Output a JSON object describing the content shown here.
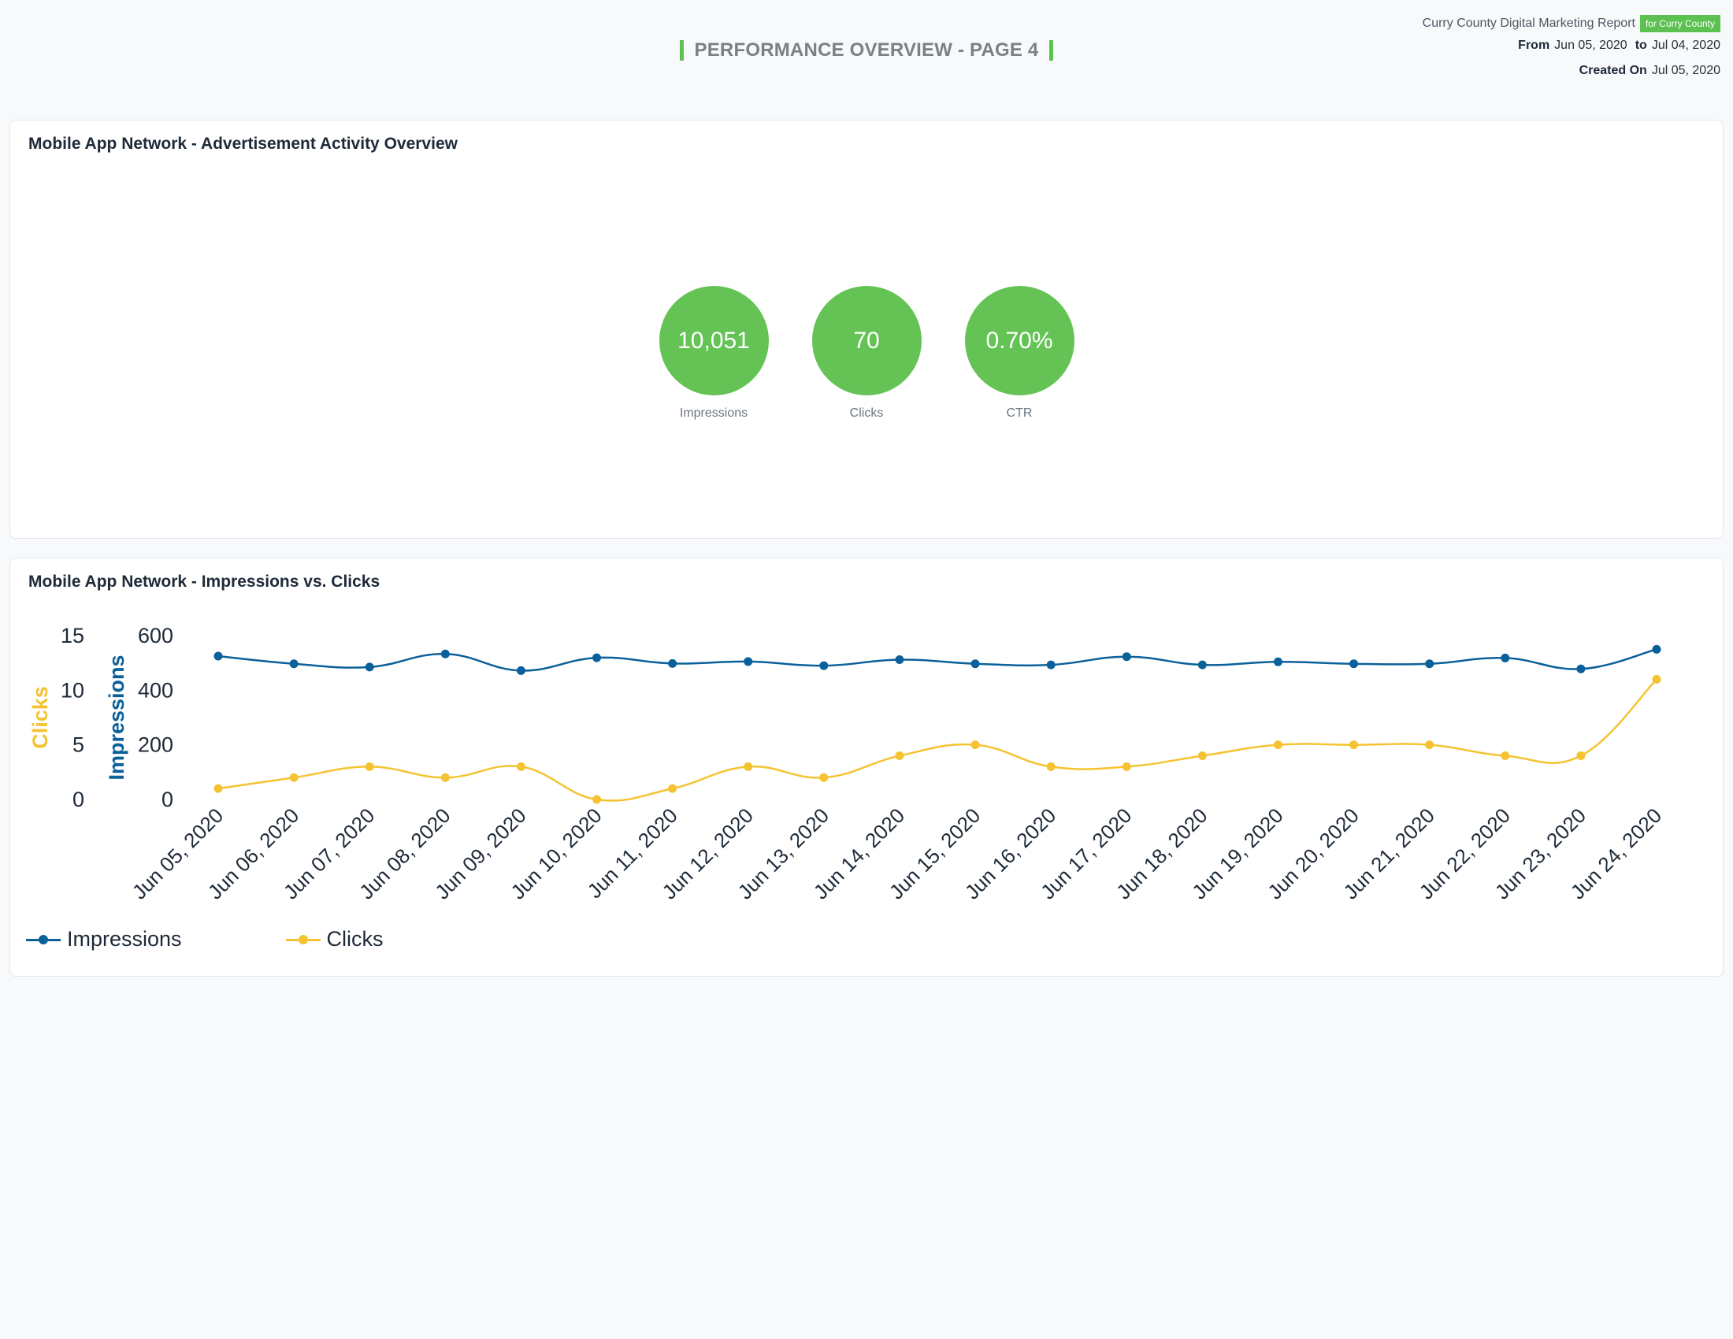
{
  "header": {
    "title": "PERFORMANCE OVERVIEW - PAGE 4"
  },
  "report": {
    "name": "Curry County Digital Marketing Report",
    "badge": "for Curry County",
    "from_label": "From",
    "from_date": "Jun 05, 2020",
    "to_label": "to",
    "to_date": "Jul 04, 2020",
    "created_label": "Created On",
    "created_date": "Jul 05, 2020"
  },
  "overview": {
    "title": "Mobile App Network - Advertisement Activity Overview",
    "kpis": [
      {
        "value": "10,051",
        "label": "Impressions"
      },
      {
        "value": "70",
        "label": "Clicks"
      },
      {
        "value": "0.70%",
        "label": "CTR"
      }
    ]
  },
  "colors": {
    "accent": "#5cc151",
    "impressions": "#0a609a",
    "clicks": "#f5c332"
  },
  "chart_data": {
    "type": "line",
    "title": "Mobile App Network - Impressions vs. Clicks",
    "categories": [
      "Jun 05, 2020",
      "Jun 06, 2020",
      "Jun 07, 2020",
      "Jun 08, 2020",
      "Jun 09, 2020",
      "Jun 10, 2020",
      "Jun 11, 2020",
      "Jun 12, 2020",
      "Jun 13, 2020",
      "Jun 14, 2020",
      "Jun 15, 2020",
      "Jun 16, 2020",
      "Jun 17, 2020",
      "Jun 18, 2020",
      "Jun 19, 2020",
      "Jun 20, 2020",
      "Jun 21, 2020",
      "Jun 22, 2020",
      "Jun 23, 2020",
      "Jun 24, 2020"
    ],
    "series": [
      {
        "name": "Impressions",
        "axis": "right",
        "color": "#0a609a",
        "values": [
          525,
          497,
          485,
          533,
          472,
          519,
          498,
          505,
          490,
          512,
          497,
          493,
          523,
          493,
          504,
          497,
          497,
          518,
          478,
          550
        ]
      },
      {
        "name": "Clicks",
        "axis": "left",
        "color": "#f5c332",
        "values": [
          1,
          2,
          3,
          2,
          3,
          0,
          1,
          3,
          2,
          4,
          5,
          3,
          3,
          4,
          5,
          5,
          5,
          4,
          4,
          11
        ]
      }
    ],
    "axes": {
      "left": {
        "label": "Clicks",
        "min": 0,
        "max": 15,
        "ticks": [
          0,
          5,
          10,
          15
        ]
      },
      "right": {
        "label": "Impressions",
        "min": 0,
        "max": 600,
        "ticks": [
          0,
          200,
          400,
          600
        ]
      }
    },
    "legend": {
      "position": "bottom-left"
    },
    "grid": false
  }
}
